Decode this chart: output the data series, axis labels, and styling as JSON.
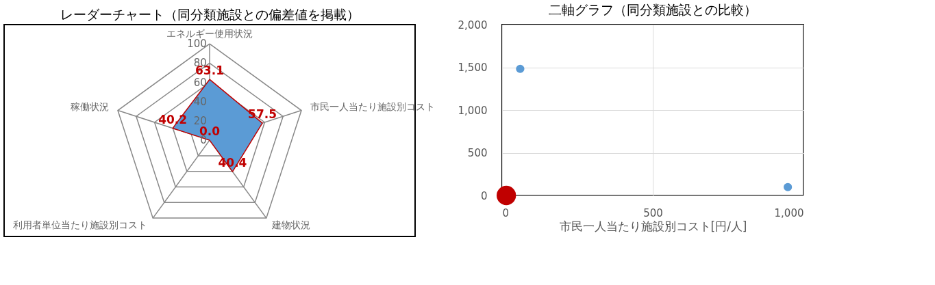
{
  "chart_data": [
    {
      "type": "radar",
      "title": "レーダーチャート（同分類施設との偏差値を掲載）",
      "categories": [
        "エネルギー使用状況",
        "市民一人当たり施設別コスト",
        "建物状況",
        "利用者単位当たり施設別コスト",
        "稼働状況"
      ],
      "series": [
        {
          "color": "#5b9bd5",
          "values": [
            63.1,
            57.5,
            40.4,
            0.0,
            40.2
          ],
          "value_labels": [
            "63.1",
            "57.5",
            "40.4",
            "0.0",
            "40.2"
          ]
        }
      ],
      "ylim": [
        0,
        100
      ],
      "yticks": [
        0,
        20,
        40,
        60,
        80,
        100
      ]
    },
    {
      "type": "scatter",
      "title": "二軸グラフ（同分類施設との比較）",
      "xlabel": "市民一人当たり施設別コスト[円/人]",
      "series": [
        {
          "color": "#5b9bd5",
          "x": [
            60,
            948
          ],
          "values": [
            1482,
            98
          ]
        },
        {
          "color": "#c00000",
          "x": [
            14
          ],
          "values": [
            0
          ]
        }
      ],
      "xlim": [
        0,
        1000
      ],
      "xticks": [
        0,
        500,
        {
          "value": 1000,
          "label": "1,000"
        }
      ],
      "ylim": [
        0,
        2000
      ],
      "yticks": [
        0,
        500,
        {
          "value": 1000,
          "label": "1,000"
        },
        {
          "value": 1500,
          "label": "1,500"
        },
        {
          "value": 2000,
          "label": "2,000"
        }
      ],
      "grid": true,
      "legend": false
    }
  ]
}
